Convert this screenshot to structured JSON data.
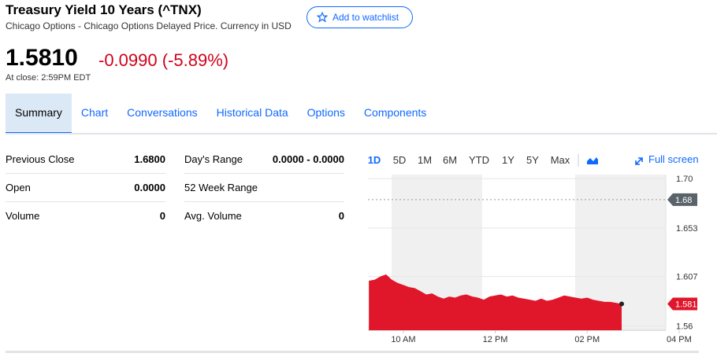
{
  "header": {
    "title": "Treasury Yield 10 Years (^TNX)",
    "subtitle": "Chicago Options - Chicago Options Delayed Price. Currency in USD",
    "watchlist": "Add to watchlist"
  },
  "quote": {
    "price": "1.5810",
    "change": "-0.0990",
    "change_pct": "(-5.89%)",
    "close_time": "At close: 2:59PM EDT"
  },
  "tabs": [
    "Summary",
    "Chart",
    "Conversations",
    "Historical Data",
    "Options",
    "Components"
  ],
  "stats": {
    "left": [
      {
        "label": "Previous Close",
        "value": "1.6800"
      },
      {
        "label": "Open",
        "value": "0.0000"
      },
      {
        "label": "Volume",
        "value": "0"
      }
    ],
    "right": [
      {
        "label": "Day's Range",
        "value": "0.0000 - 0.0000"
      },
      {
        "label": "52 Week Range"
      },
      {
        "label": "Avg. Volume",
        "value": "0"
      }
    ]
  },
  "chart_data": {
    "type": "area",
    "ranges": [
      "1D",
      "5D",
      "1M",
      "6M",
      "YTD",
      "1Y",
      "5Y",
      "Max"
    ],
    "full_screen": "Full screen",
    "x": [
      9.25,
      9.375,
      9.5,
      9.625,
      9.75,
      9.875,
      10.0,
      10.125,
      10.25,
      10.375,
      10.5,
      10.625,
      10.75,
      10.875,
      11.0,
      11.125,
      11.25,
      11.375,
      11.5,
      11.625,
      11.75,
      11.875,
      12.0,
      12.125,
      12.25,
      12.375,
      12.5,
      12.625,
      12.75,
      12.875,
      13.0,
      13.125,
      13.25,
      13.375,
      13.5,
      13.625,
      13.75,
      13.875,
      14.0,
      14.125,
      14.25,
      14.375,
      14.5,
      14.625,
      14.75
    ],
    "series": [
      {
        "color": "#e0162b",
        "values": [
          1.603,
          1.604,
          1.607,
          1.609,
          1.604,
          1.601,
          1.599,
          1.597,
          1.596,
          1.593,
          1.59,
          1.591,
          1.588,
          1.586,
          1.588,
          1.587,
          1.589,
          1.59,
          1.588,
          1.587,
          1.585,
          1.588,
          1.589,
          1.59,
          1.588,
          1.589,
          1.587,
          1.586,
          1.585,
          1.584,
          1.586,
          1.584,
          1.585,
          1.587,
          1.589,
          1.588,
          1.587,
          1.586,
          1.587,
          1.585,
          1.584,
          1.583,
          1.583,
          1.582,
          1.581
        ]
      }
    ],
    "xlim": [
      9.23,
      15.71
    ],
    "xticks": [
      {
        "value": 10,
        "label": "10 AM"
      },
      {
        "value": 12,
        "label": "12 PM"
      },
      {
        "value": 14,
        "label": "02 PM"
      },
      {
        "value": 16,
        "label": "04 PM"
      }
    ],
    "ylim": [
      1.556,
      1.7038
    ],
    "yticks": [
      {
        "value": 1.7,
        "label": "1.70"
      },
      1.653,
      1.607,
      1.56
    ],
    "grid": true,
    "markers": [
      {
        "value": 1.68,
        "color": "#5b636a"
      },
      {
        "value": 1.581,
        "color": "#e0162b"
      }
    ]
  }
}
